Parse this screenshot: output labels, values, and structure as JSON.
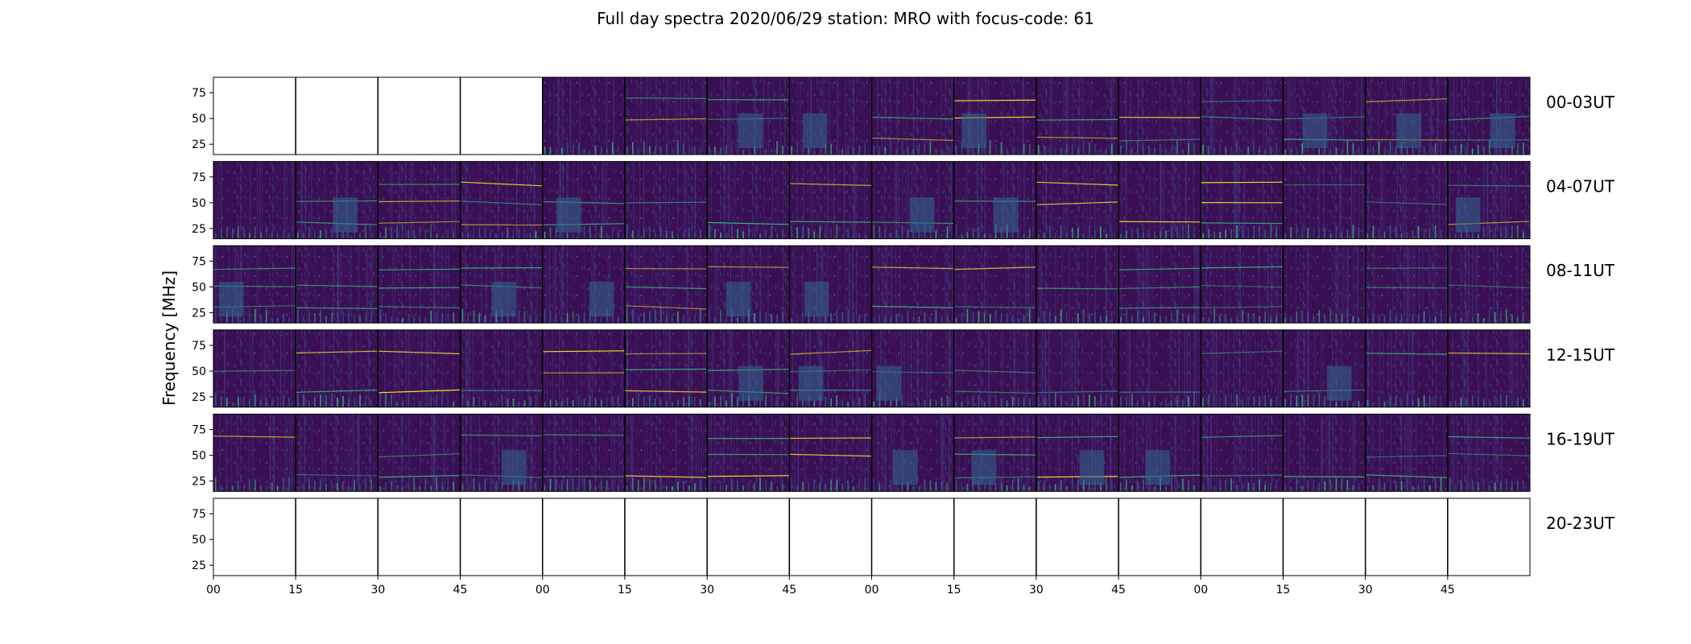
{
  "chart_data": {
    "type": "heatmap",
    "title": "Full day spectra 2020/06/29 station: MRO with focus-code: 61",
    "ylabel": "Frequency [MHz]",
    "xlabel": "",
    "yticks": [
      "25",
      "50",
      "75"
    ],
    "ytick_values": [
      25,
      50,
      75
    ],
    "ylim": [
      15,
      90
    ],
    "xticks": [
      "00",
      "15",
      "30",
      "45",
      "00",
      "15",
      "30",
      "45",
      "00",
      "15",
      "30",
      "45",
      "00",
      "15",
      "30",
      "45"
    ],
    "rows": [
      {
        "label": "00-03UT",
        "filled": [
          0,
          0,
          0,
          0,
          1,
          1,
          1,
          1,
          1,
          1,
          1,
          1,
          1,
          1,
          1,
          1
        ]
      },
      {
        "label": "04-07UT",
        "filled": [
          1,
          1,
          1,
          1,
          1,
          1,
          1,
          1,
          1,
          1,
          1,
          1,
          1,
          1,
          1,
          1
        ]
      },
      {
        "label": "08-11UT",
        "filled": [
          1,
          1,
          1,
          1,
          1,
          1,
          1,
          1,
          1,
          1,
          1,
          1,
          1,
          1,
          1,
          1
        ]
      },
      {
        "label": "12-15UT",
        "filled": [
          1,
          1,
          1,
          1,
          1,
          1,
          1,
          1,
          1,
          1,
          1,
          1,
          1,
          1,
          1,
          1
        ]
      },
      {
        "label": "16-19UT",
        "filled": [
          1,
          1,
          1,
          1,
          1,
          1,
          1,
          1,
          1,
          1,
          1,
          1,
          1,
          1,
          1,
          1
        ]
      },
      {
        "label": "20-23UT",
        "filled": [
          0,
          0,
          0,
          0,
          0,
          0,
          0,
          0,
          0,
          0,
          0,
          0,
          0,
          0,
          0,
          0
        ]
      }
    ],
    "colormap": "viridis",
    "colors": {
      "background": "#3b0f54",
      "band_low": "#443a83",
      "band_mid": "#31688e",
      "band_high": "#35b779",
      "band_peak": "#fde725"
    },
    "grid": false
  }
}
